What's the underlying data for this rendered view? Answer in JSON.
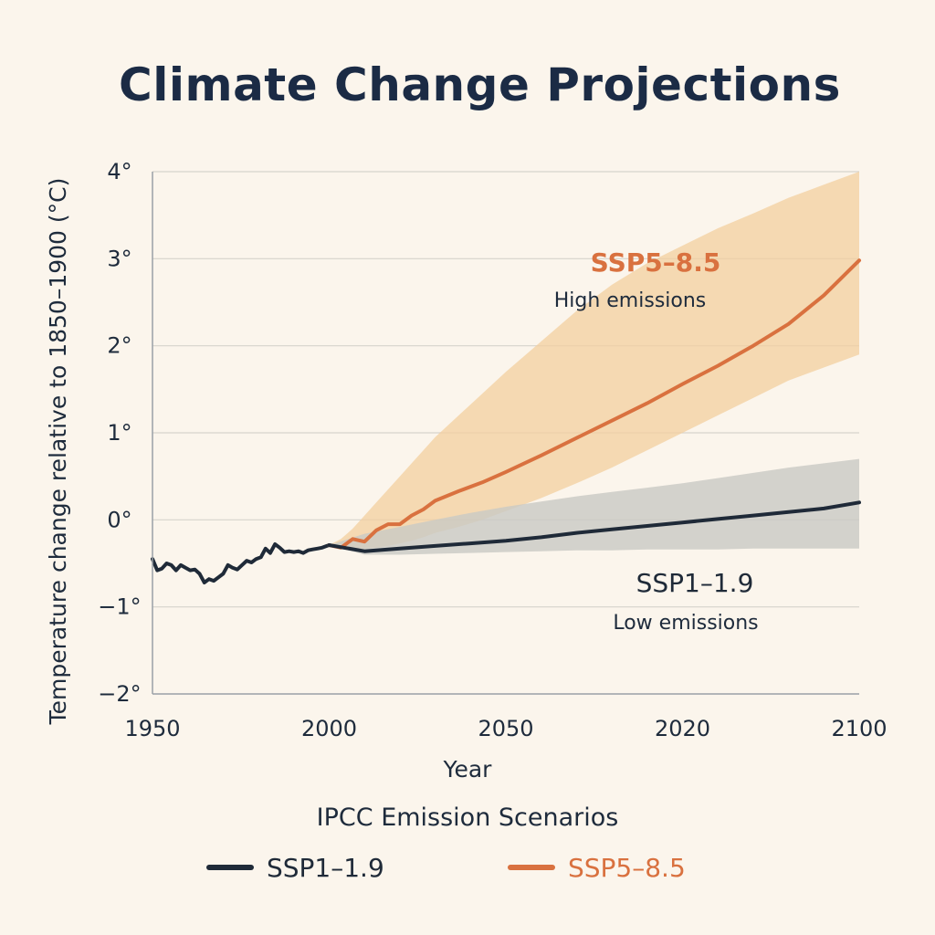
{
  "chart_data": {
    "type": "line",
    "title": "Climate Change Projections",
    "xlabel": "Year",
    "ylabel": "Temperature change relative to 1850–1900 (°C)",
    "x_tick_labels": [
      "1950",
      "2000",
      "2050",
      "2020",
      "2100"
    ],
    "y_ticks": [
      4,
      3,
      2,
      1,
      0,
      -1,
      -2
    ],
    "y_tick_labels": [
      "4°",
      "3°",
      "2°",
      "1°",
      "0°",
      "−1°",
      "−2°"
    ],
    "ylim": [
      -2,
      4
    ],
    "grid": true,
    "legend_title": "IPCC Emission Scenarios",
    "legend_position": "bottom",
    "historical": {
      "color": "#1f2a38",
      "x": [
        0,
        2,
        4,
        6,
        8,
        10,
        12,
        14,
        16,
        18,
        20,
        22,
        24,
        26,
        28,
        30,
        32,
        34,
        36,
        38,
        40,
        42,
        44,
        46,
        48,
        50,
        52,
        54,
        56,
        58,
        60,
        62,
        64,
        66,
        68,
        70,
        72,
        74,
        75
      ],
      "y": [
        -0.45,
        -0.58,
        -0.56,
        -0.5,
        -0.52,
        -0.58,
        -0.52,
        -0.55,
        -0.58,
        -0.57,
        -0.62,
        -0.72,
        -0.68,
        -0.7,
        -0.66,
        -0.62,
        -0.52,
        -0.55,
        -0.57,
        -0.52,
        -0.47,
        -0.49,
        -0.45,
        -0.43,
        -0.33,
        -0.38,
        -0.28,
        -0.32,
        -0.37,
        -0.36,
        -0.37,
        -0.36,
        -0.38,
        -0.35,
        -0.34,
        -0.33,
        -0.32,
        -0.3,
        -0.29
      ]
    },
    "series": [
      {
        "name": "SSP1–1.9",
        "annotation": "Low emissions",
        "color": "#1f2a38",
        "band_color": "#c9c9c4",
        "x": [
          75,
          90,
          105,
          120,
          135,
          150,
          165,
          180,
          195,
          210,
          225,
          240,
          255,
          270,
          285,
          300
        ],
        "y": [
          -0.29,
          -0.36,
          -0.33,
          -0.3,
          -0.27,
          -0.24,
          -0.2,
          -0.15,
          -0.11,
          -0.07,
          -0.03,
          0.01,
          0.05,
          0.09,
          0.13,
          0.2
        ],
        "band_low": [
          -0.29,
          -0.4,
          -0.4,
          -0.39,
          -0.38,
          -0.37,
          -0.36,
          -0.35,
          -0.35,
          -0.34,
          -0.34,
          -0.34,
          -0.33,
          -0.33,
          -0.33,
          -0.33
        ],
        "band_high": [
          -0.29,
          -0.16,
          -0.08,
          0.0,
          0.08,
          0.15,
          0.21,
          0.27,
          0.32,
          0.37,
          0.42,
          0.48,
          0.54,
          0.6,
          0.65,
          0.7
        ]
      },
      {
        "name": "SSP5–8.5",
        "annotation": "High emissions",
        "color": "#d9713f",
        "band_color": "#f3cf9f",
        "x": [
          75,
          80,
          85,
          90,
          95,
          100,
          105,
          110,
          115,
          120,
          130,
          140,
          150,
          165,
          180,
          195,
          210,
          225,
          240,
          255,
          270,
          285,
          300
        ],
        "y": [
          -0.29,
          -0.32,
          -0.22,
          -0.25,
          -0.12,
          -0.05,
          -0.05,
          0.05,
          0.12,
          0.22,
          0.33,
          0.43,
          0.55,
          0.74,
          0.94,
          1.14,
          1.34,
          1.56,
          1.77,
          2.0,
          2.25,
          2.58,
          2.98
        ],
        "band_low": [
          -0.29,
          -0.33,
          -0.33,
          -0.33,
          -0.32,
          -0.3,
          -0.27,
          -0.24,
          -0.2,
          -0.15,
          -0.08,
          0.0,
          0.1,
          0.25,
          0.42,
          0.6,
          0.8,
          1.0,
          1.2,
          1.4,
          1.6,
          1.75,
          1.9
        ],
        "band_high": [
          -0.29,
          -0.22,
          -0.1,
          0.05,
          0.2,
          0.35,
          0.5,
          0.65,
          0.8,
          0.95,
          1.2,
          1.45,
          1.7,
          2.05,
          2.4,
          2.7,
          2.95,
          3.15,
          3.35,
          3.52,
          3.7,
          3.85,
          4.0
        ]
      }
    ]
  }
}
